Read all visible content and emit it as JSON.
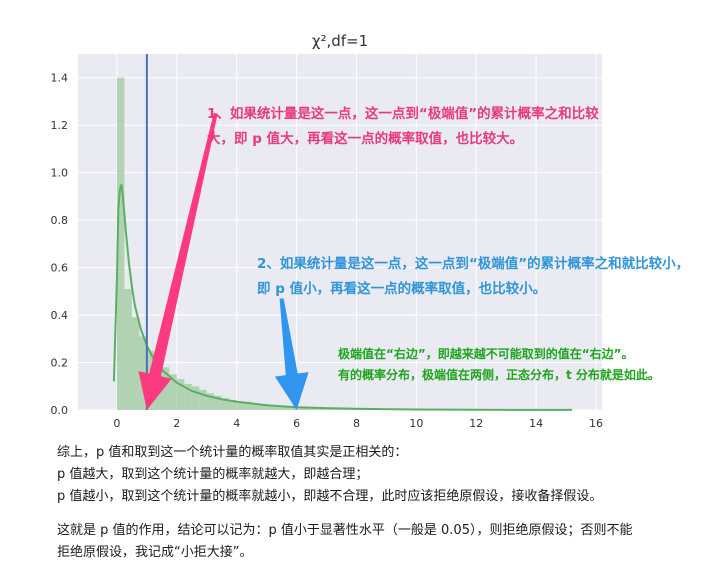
{
  "chart_data": {
    "type": "bar",
    "title": "χ²,df=1",
    "xlabel": "",
    "ylabel": "",
    "xlim": [
      -1.3,
      16.2
    ],
    "ylim": [
      0,
      1.5
    ],
    "xticks": [
      0,
      2,
      4,
      6,
      8,
      10,
      12,
      14,
      16
    ],
    "yticks": [
      0.0,
      0.2,
      0.4,
      0.6,
      0.8,
      1.0,
      1.2,
      1.4
    ],
    "grid": true,
    "histogram": {
      "bin_edges": [
        0.0,
        0.25,
        0.5,
        0.75,
        1.0,
        1.25,
        1.5,
        1.75,
        2.0,
        2.25,
        2.5,
        2.75,
        3.0,
        3.25,
        3.5,
        3.75,
        4.0,
        4.5,
        5.0,
        5.5,
        6.0,
        7.0,
        8.0,
        9.0,
        10.0,
        12.0,
        15.0
      ],
      "values": [
        1.4,
        0.51,
        0.39,
        0.31,
        0.25,
        0.21,
        0.18,
        0.15,
        0.13,
        0.11,
        0.1,
        0.085,
        0.07,
        0.06,
        0.05,
        0.042,
        0.035,
        0.026,
        0.019,
        0.014,
        0.01,
        0.006,
        0.004,
        0.002,
        0.0015,
        0.001
      ]
    },
    "kde": {
      "x": [
        -0.1,
        0.0,
        0.05,
        0.1,
        0.15,
        0.2,
        0.3,
        0.4,
        0.5,
        0.6,
        0.8,
        1.0,
        1.25,
        1.5,
        2.0,
        2.5,
        3.0,
        3.5,
        4.0,
        5.0,
        6.0,
        7.0,
        8.0,
        10.0,
        12.0,
        14.0,
        15.2
      ],
      "y": [
        0.12,
        0.55,
        0.85,
        0.93,
        0.95,
        0.9,
        0.75,
        0.62,
        0.52,
        0.44,
        0.34,
        0.27,
        0.21,
        0.17,
        0.115,
        0.08,
        0.06,
        0.045,
        0.035,
        0.02,
        0.012,
        0.008,
        0.005,
        0.002,
        0.001,
        0.0005,
        0.0003
      ]
    },
    "vline": {
      "x": 1.0,
      "y_top": 1.5
    },
    "arrows": [
      {
        "color": "#fc3a7f",
        "from": [
          3.3,
          1.25
        ],
        "to": [
          1.0,
          0.0
        ]
      },
      {
        "color": "#2f95ef",
        "from": [
          5.5,
          0.47
        ],
        "to": [
          6.0,
          0.0
        ]
      }
    ],
    "colors": {
      "hist": "#a7cfa8",
      "kde": "#5cae65",
      "vline": "#4a72b8",
      "plot_bg": "#eaeaf2",
      "grid": "#ffffff"
    }
  },
  "annotations": {
    "note1_line1": "1、如果统计量是这一点，这一点到“极端值”的累计概率之和比较",
    "note1_line2": "大，即 p 值大，再看这一点的概率取值，也比较大。",
    "note2_line1": "2、如果统计量是这一点，这一点到“极端值”的累计概率之和就比较小，",
    "note2_line2": "即 p 值小，再看这一点的概率取值，也比较小。",
    "note3_line1": "极端值在“右边”，即越来越不可能取到的值在“右边”。",
    "note3_line2": "有的概率分布，极端值在两侧，正态分布，t 分布就是如此。"
  },
  "summary": {
    "line1": "综上，p 值和取到这一个统计量的概率取值其实是正相关的：",
    "line2": "p 值越大，取到这个统计量的概率就越大，即越合理；",
    "line3": "p 值越小，取到这个统计量的概率就越小，即越不合理，此时应该拒绝原假设，接收备择假设。",
    "line4": "这就是 p 值的作用，结论可以记为：p 值小于显著性水平（一般是 0.05），则拒绝原假设；否则不能",
    "line5": "拒绝原假设，我记成“小拒大接”。"
  }
}
